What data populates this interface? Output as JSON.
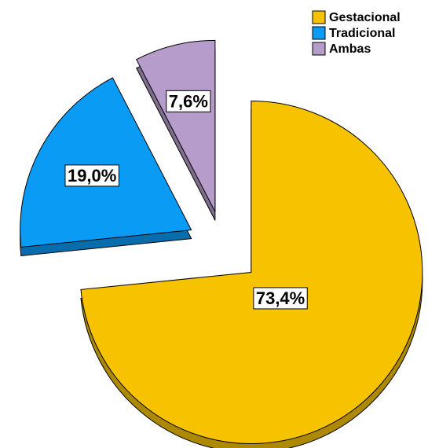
{
  "chart_data": {
    "type": "pie",
    "categories": [
      "Gestacional",
      "Tradicional",
      "Ambas"
    ],
    "values": [
      73.4,
      19.0,
      7.6
    ],
    "value_labels": [
      "73,4%",
      "19,0%",
      "7,6%"
    ],
    "colors": [
      "#f7c300",
      "#0a9bf5",
      "#b69cca"
    ],
    "legend": "upper right"
  }
}
